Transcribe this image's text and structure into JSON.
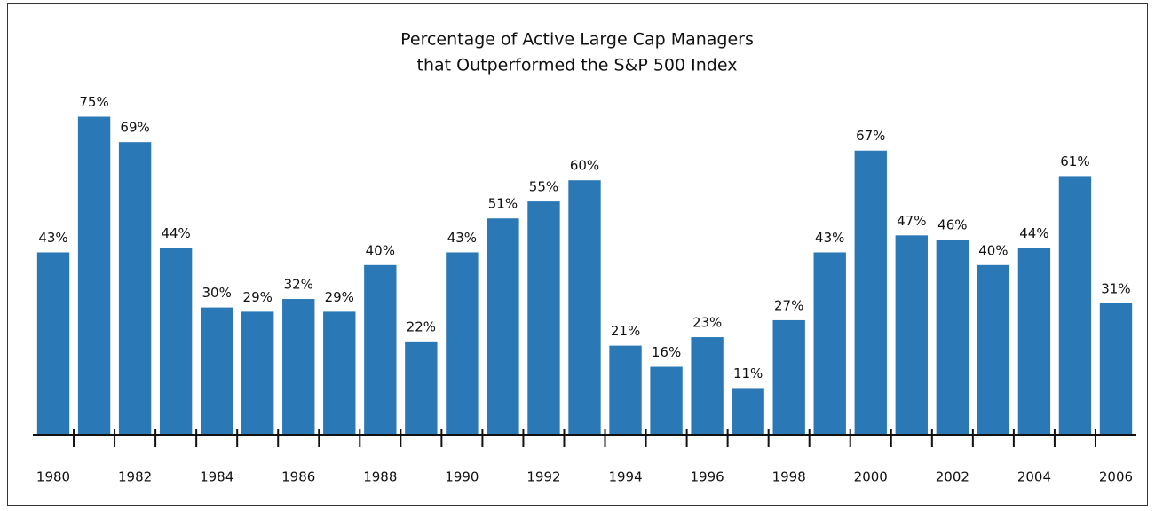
{
  "chart_data": {
    "type": "bar",
    "title": [
      "Percentage of Active Large Cap Managers",
      "that Outperformed the S&P 500 Index"
    ],
    "categories": [
      "1980",
      null,
      "1982",
      null,
      "1984",
      null,
      "1986",
      null,
      "1988",
      null,
      "1990",
      null,
      "1992",
      null,
      "1994",
      null,
      "1996",
      null,
      "1998",
      null,
      "2000",
      null,
      "2002",
      null,
      "2004",
      null,
      "2006"
    ],
    "values": [
      43,
      75,
      69,
      44,
      30,
      29,
      32,
      29,
      40,
      22,
      43,
      51,
      55,
      60,
      21,
      16,
      23,
      11,
      27,
      43,
      67,
      47,
      46,
      40,
      44,
      61,
      31
    ],
    "value_labels": [
      "43%",
      "75%",
      "69%",
      "44%",
      "30%",
      "29%",
      "32%",
      "29%",
      "40%",
      "22%",
      "43%",
      "51%",
      "55%",
      "60%",
      "21%",
      "16%",
      "23%",
      "11%",
      "27%",
      "43%",
      "67%",
      "47%",
      "46%",
      "40%",
      "44%",
      "61%",
      "31%"
    ],
    "color": "#2a78b5"
  }
}
